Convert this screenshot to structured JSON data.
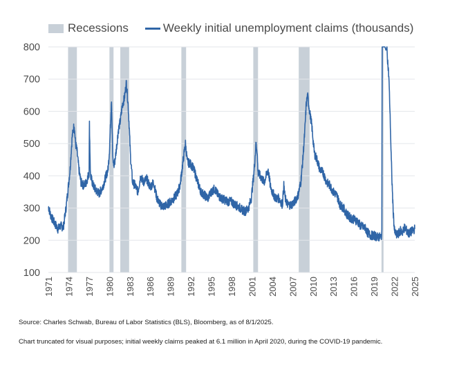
{
  "chart_data": {
    "type": "line",
    "legend": {
      "recessions_label": "Recessions",
      "series_label": "Weekly initial unemployment claims (thousands)"
    },
    "ylim": [
      100,
      800
    ],
    "yticks": [
      "100",
      "200",
      "300",
      "400",
      "500",
      "600",
      "700",
      "800"
    ],
    "xlim": [
      1971,
      2025
    ],
    "xticks": [
      "1971",
      "1974",
      "1977",
      "1980",
      "1983",
      "1986",
      "1989",
      "1992",
      "1995",
      "1998",
      "2001",
      "2004",
      "2007",
      "2010",
      "2013",
      "2016",
      "2019",
      "2022",
      "2025"
    ],
    "recessions": [
      [
        1973.9,
        1975.2
      ],
      [
        1980.0,
        1980.6
      ],
      [
        1981.6,
        1982.9
      ],
      [
        1990.6,
        1991.3
      ],
      [
        2001.2,
        2001.9
      ],
      [
        2007.9,
        2009.5
      ],
      [
        2020.1,
        2020.4
      ]
    ],
    "colors": {
      "line": "#2f65a7",
      "recession": "#c8d0d8",
      "grid": "#e3e6ea",
      "text": "#4a4a4a"
    },
    "series": [
      {
        "x": [
          1971.0,
          1971.3,
          1971.6,
          1972.0,
          1972.4,
          1972.8,
          1973.2,
          1973.6,
          1973.9,
          1974.2,
          1974.5,
          1974.8,
          1975.0,
          1975.2,
          1975.5,
          1975.8,
          1976.2,
          1976.6,
          1977.0,
          1977.05,
          1977.2,
          1977.6,
          1978.0,
          1978.5,
          1979.0,
          1979.5,
          1979.8,
          1980.0,
          1980.3,
          1980.4,
          1980.5,
          1980.7,
          1981.0,
          1981.3,
          1981.6,
          1981.9,
          1982.2,
          1982.5,
          1982.75,
          1982.9,
          1983.1,
          1983.4,
          1983.8,
          1984.2,
          1984.6,
          1985.0,
          1985.5,
          1986.0,
          1986.5,
          1987.0,
          1987.5,
          1988.0,
          1988.5,
          1989.0,
          1989.5,
          1990.0,
          1990.4,
          1990.7,
          1991.0,
          1991.2,
          1991.5,
          1991.8,
          1992.2,
          1992.6,
          1993.0,
          1993.5,
          1994.0,
          1994.5,
          1995.0,
          1995.5,
          1996.0,
          1996.5,
          1997.0,
          1997.5,
          1998.0,
          1998.5,
          1999.0,
          1999.5,
          2000.0,
          2000.5,
          2000.9,
          2001.1,
          2001.3,
          2001.6,
          2001.75,
          2001.9,
          2002.2,
          2002.5,
          2002.8,
          2003.1,
          2003.4,
          2003.7,
          2004.0,
          2004.5,
          2005.0,
          2005.5,
          2005.7,
          2005.9,
          2006.3,
          2006.8,
          2007.3,
          2007.8,
          2008.2,
          2008.5,
          2008.8,
          2009.0,
          2009.2,
          2009.5,
          2009.8,
          2010.2,
          2010.6,
          2011.0,
          2011.5,
          2012.0,
          2012.5,
          2013.0,
          2013.5,
          2014.0,
          2014.5,
          2015.0,
          2015.5,
          2016.0,
          2016.5,
          2017.0,
          2017.5,
          2017.8,
          2018.0,
          2018.5,
          2019.0,
          2019.5,
          2020.0,
          2020.15,
          2020.2,
          2020.3,
          2020.4,
          2020.5,
          2020.6,
          2020.75,
          2020.9,
          2021.0,
          2021.2,
          2021.35,
          2021.5,
          2021.65,
          2021.8,
          2022.0,
          2022.3,
          2022.6,
          2022.9,
          2023.2,
          2023.5,
          2023.8,
          2024.1,
          2024.4,
          2024.7,
          2025.0
        ],
        "y": [
          305,
          280,
          265,
          250,
          235,
          245,
          240,
          300,
          360,
          420,
          520,
          560,
          500,
          480,
          420,
          380,
          370,
          380,
          410,
          560,
          400,
          370,
          355,
          345,
          365,
          400,
          420,
          480,
          640,
          540,
          450,
          430,
          480,
          540,
          570,
          620,
          640,
          690,
          620,
          560,
          460,
          380,
          370,
          350,
          400,
          380,
          390,
          365,
          380,
          330,
          310,
          305,
          310,
          320,
          330,
          345,
          370,
          420,
          470,
          500,
          440,
          440,
          430,
          410,
          380,
          350,
          340,
          330,
          350,
          360,
          340,
          330,
          325,
          320,
          320,
          310,
          305,
          295,
          290,
          300,
          330,
          370,
          410,
          500,
          480,
          410,
          400,
          390,
          380,
          400,
          420,
          370,
          350,
          330,
          330,
          310,
          370,
          330,
          310,
          310,
          320,
          340,
          380,
          450,
          540,
          620,
          650,
          600,
          560,
          470,
          450,
          420,
          410,
          380,
          370,
          350,
          340,
          310,
          300,
          280,
          270,
          265,
          260,
          245,
          240,
          235,
          225,
          215,
          215,
          210,
          210,
          220,
          800,
          800,
          800,
          800,
          800,
          790,
          800,
          760,
          700,
          600,
          480,
          380,
          300,
          230,
          215,
          220,
          230,
          225,
          240,
          230,
          220,
          225,
          230,
          235
        ]
      }
    ]
  },
  "footnotes": {
    "source": "Source: Charles Schwab, Bureau of Labor Statistics (BLS), Bloomberg, as of 8/1/2025.",
    "note": "Chart truncated for visual purposes; initial weekly claims peaked at 6.1 million in April 2020, during the COVID-19 pandemic."
  }
}
